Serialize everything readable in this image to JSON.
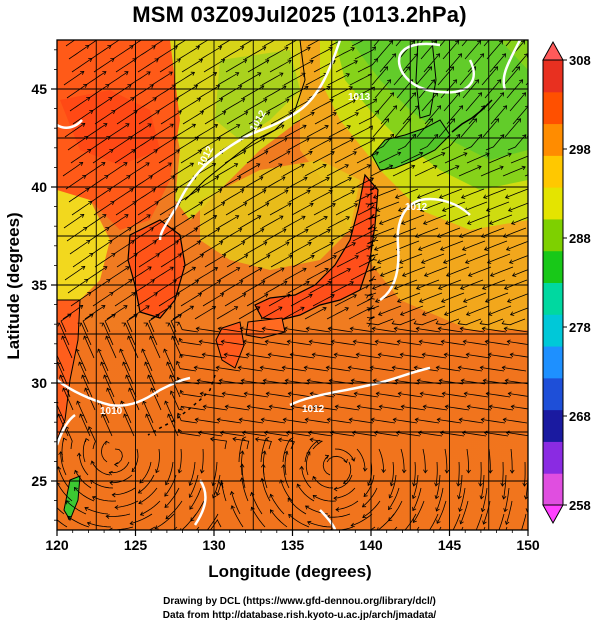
{
  "title": "MSM 03Z09Jul2025 (1013.2hPa)",
  "xaxis": {
    "label": "Longitude (degrees)",
    "ticks": [
      120,
      125,
      130,
      135,
      140,
      145,
      150
    ],
    "range": [
      120,
      150
    ]
  },
  "yaxis": {
    "label": "Latitude  (degrees)",
    "ticks": [
      25,
      30,
      35,
      40,
      45
    ],
    "range": [
      22.5,
      47.5
    ]
  },
  "colorbar": {
    "ticks": [
      258,
      268,
      278,
      288,
      298,
      308
    ],
    "range": [
      258,
      308
    ],
    "colors": [
      "#e04ee0",
      "#8a2be2",
      "#1a1aa0",
      "#1e4fd8",
      "#1e90ff",
      "#00c8d8",
      "#00d8a0",
      "#18c818",
      "#7ed000",
      "#e4e400",
      "#ffc800",
      "#ff8c00",
      "#ff5000",
      "#e83020"
    ]
  },
  "isobar_labels": [
    "1013",
    "1012",
    "1012",
    "1012",
    "1010",
    "1012"
  ],
  "credits": {
    "line1": "Drawing by DCL (https://www.gfd-dennou.org/library/dcl/)",
    "line2": "Data from http://database.rish.kyoto-u.ac.jp/arch/jmadata/"
  },
  "colors": {
    "land_hot": "#ff6a1a",
    "sea_warm": "#f08a1e",
    "cool_green": "#7ed000",
    "isobar": "#ffffff",
    "streamline": "#000000"
  }
}
